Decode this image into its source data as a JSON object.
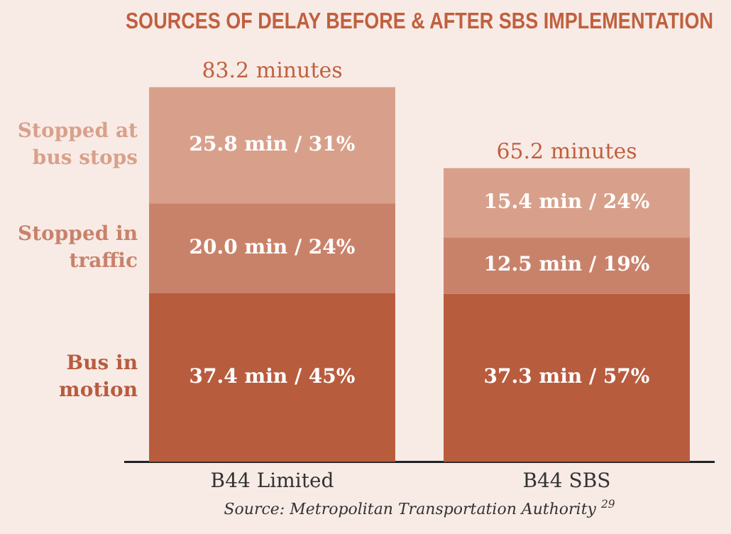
{
  "chart_data": {
    "type": "bar",
    "title": "SOURCES OF DELAY BEFORE & AFTER SBS IMPLEMENTATION",
    "annotations": [
      "Source: Metropolitan Transportation Authority $^{29}$"
    ],
    "categories": [
      "B44 Limited",
      "B44 SBS"
    ],
    "stacked": true,
    "tick_labels": "x",
    "legend": false,
    "series": [
      {
        "name": "Bus in motion",
        "color": "#b85c3e",
        "values": [
          37.4,
          37.3
        ],
        "value_labels": [
          "37.4 min / 45%",
          "37.3 min / 57%"
        ]
      },
      {
        "name": "Stopped in traffic",
        "color": "#c9826a",
        "values": [
          20.0,
          12.5
        ],
        "value_labels": [
          "20.0 min / 24%",
          "12.5 min / 19%"
        ]
      },
      {
        "name": "Stopped at bus stops",
        "color": "#d8a08b",
        "values": [
          25.8,
          15.4
        ],
        "value_labels": [
          "25.8 min / 31%",
          "15.4 min / 24%"
        ]
      }
    ],
    "totals": [
      "83.2 minutes",
      "65.2 minutes"
    ]
  }
}
